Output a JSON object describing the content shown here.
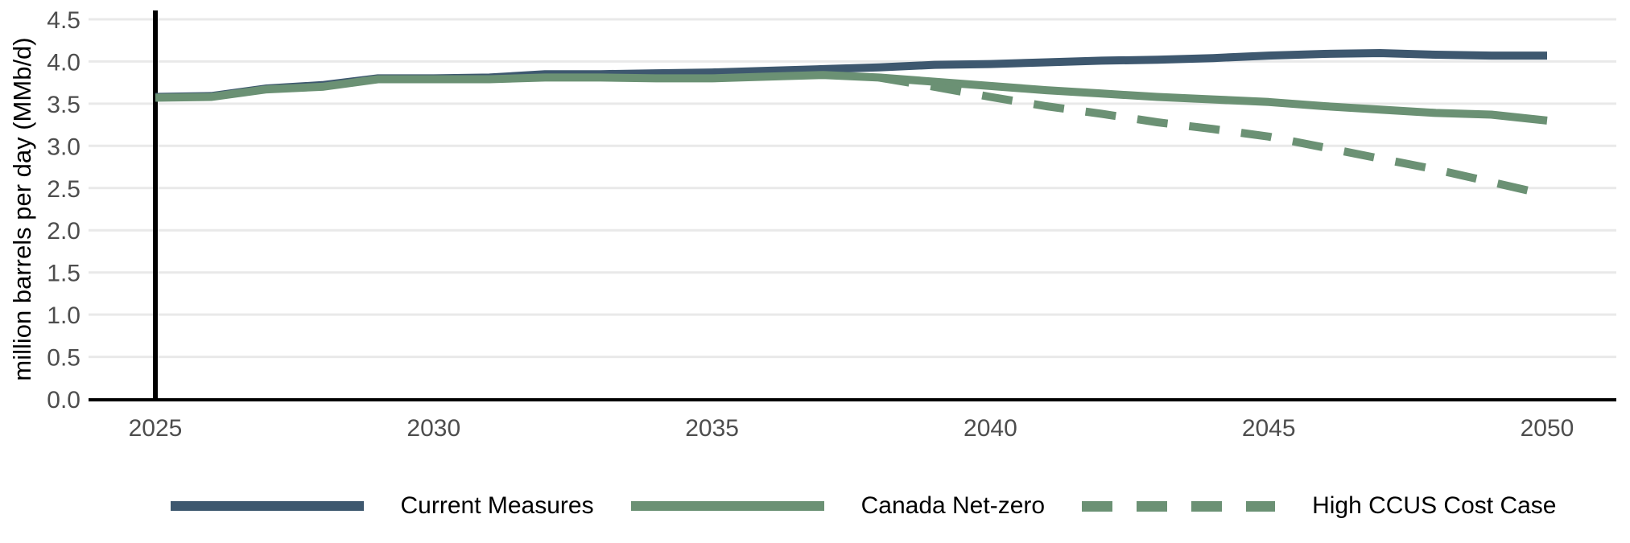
{
  "chart_data": {
    "type": "line",
    "title": "",
    "xlabel": "",
    "ylabel": "million barrels per day (MMb/d)",
    "ylim": [
      0.0,
      4.5
    ],
    "xlim": [
      2025,
      2050
    ],
    "grid": true,
    "legend_position": "bottom",
    "yticks": [
      0.0,
      0.5,
      1.0,
      1.5,
      2.0,
      2.5,
      3.0,
      3.5,
      4.0,
      4.5
    ],
    "xticks": [
      2025,
      2030,
      2035,
      2040,
      2045,
      2050
    ],
    "x": [
      2025,
      2026,
      2027,
      2028,
      2029,
      2030,
      2031,
      2032,
      2033,
      2034,
      2035,
      2036,
      2037,
      2038,
      2039,
      2040,
      2041,
      2042,
      2043,
      2044,
      2045,
      2046,
      2047,
      2048,
      2049,
      2050
    ],
    "series": [
      {
        "name": "Current Measures",
        "color": "#3e586f",
        "style": "solid",
        "values": [
          3.58,
          3.59,
          3.68,
          3.72,
          3.8,
          3.8,
          3.81,
          3.85,
          3.85,
          3.86,
          3.87,
          3.89,
          3.91,
          3.93,
          3.96,
          3.97,
          3.99,
          4.01,
          4.02,
          4.04,
          4.07,
          4.09,
          4.1,
          4.08,
          4.07,
          4.07
        ]
      },
      {
        "name": "Canada Net-zero",
        "color": "#6b9174",
        "style": "solid",
        "values": [
          3.57,
          3.58,
          3.67,
          3.7,
          3.79,
          3.79,
          3.79,
          3.81,
          3.81,
          3.8,
          3.8,
          3.82,
          3.84,
          3.81,
          3.76,
          3.71,
          3.66,
          3.62,
          3.58,
          3.55,
          3.52,
          3.47,
          3.43,
          3.39,
          3.37,
          3.3
        ]
      },
      {
        "name": "High CCUS Cost Case",
        "color": "#6b9174",
        "style": "dashed",
        "values": [
          null,
          null,
          null,
          null,
          null,
          null,
          null,
          null,
          null,
          null,
          null,
          null,
          null,
          3.81,
          3.7,
          3.58,
          3.47,
          3.38,
          3.28,
          3.2,
          3.11,
          2.98,
          2.85,
          2.72,
          2.57,
          2.42
        ]
      }
    ],
    "annotations": [
      {
        "type": "vline",
        "x": 2025,
        "color": "#000000"
      }
    ]
  },
  "axes": {
    "y_title": "million barrels per day (MMb/d)",
    "y_tick_labels": [
      "0.0",
      "0.5",
      "1.0",
      "1.5",
      "2.0",
      "2.5",
      "3.0",
      "3.5",
      "4.0",
      "4.5"
    ],
    "x_tick_labels": [
      "2025",
      "2030",
      "2035",
      "2040",
      "2045",
      "2050"
    ],
    "tick_color": "#4d4d4d",
    "gridline_color": "#e9e9e9",
    "axis_line_color": "#000000"
  },
  "legend": {
    "items": [
      {
        "label": "Current Measures",
        "color": "#3e586f",
        "style": "solid"
      },
      {
        "label": "Canada Net-zero",
        "color": "#6b9174",
        "style": "solid"
      },
      {
        "label": "High CCUS Cost Case",
        "color": "#6b9174",
        "style": "dashed"
      }
    ]
  }
}
